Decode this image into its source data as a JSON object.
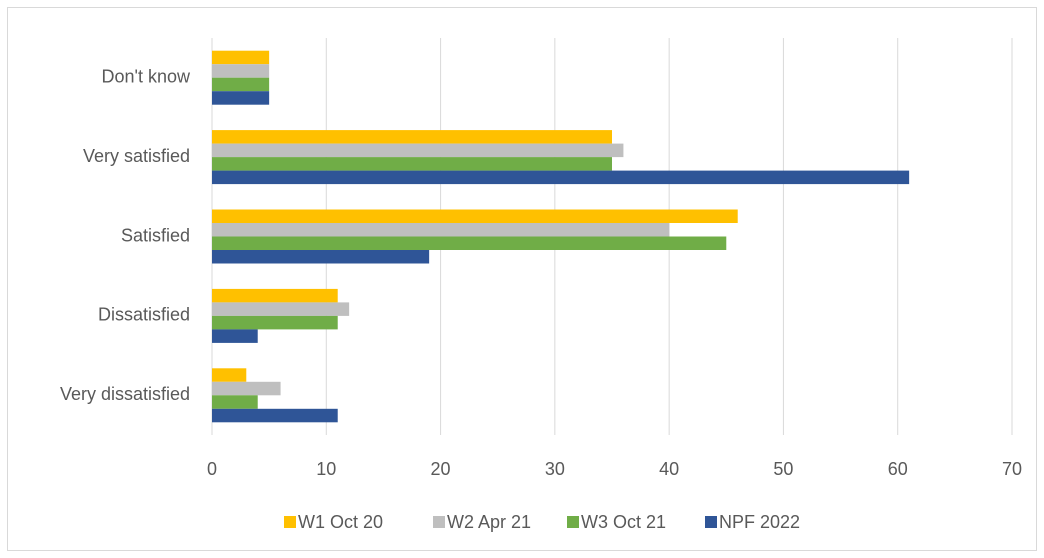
{
  "chart_data": {
    "type": "hbar",
    "categories": [
      "Don't know",
      "Very satisfied",
      "Satisfied",
      "Dissatisfied",
      "Very dissatisfied"
    ],
    "series": [
      {
        "name": "W1 Oct 20",
        "color": "#ffc000",
        "values": [
          5,
          35,
          46,
          11,
          3
        ]
      },
      {
        "name": "W2 Apr 21",
        "color": "#bfbfbf",
        "values": [
          5,
          36,
          40,
          12,
          6
        ]
      },
      {
        "name": "W3 Oct 21",
        "color": "#70ad47",
        "values": [
          5,
          35,
          45,
          11,
          4
        ]
      },
      {
        "name": "NPF 2022",
        "color": "#2f5597",
        "values": [
          5,
          61,
          19,
          4,
          11
        ]
      }
    ],
    "xlim": [
      0,
      70
    ],
    "xticks": [
      0,
      10,
      20,
      30,
      40,
      50,
      60,
      70
    ],
    "grid": true,
    "legend": "bottom"
  }
}
